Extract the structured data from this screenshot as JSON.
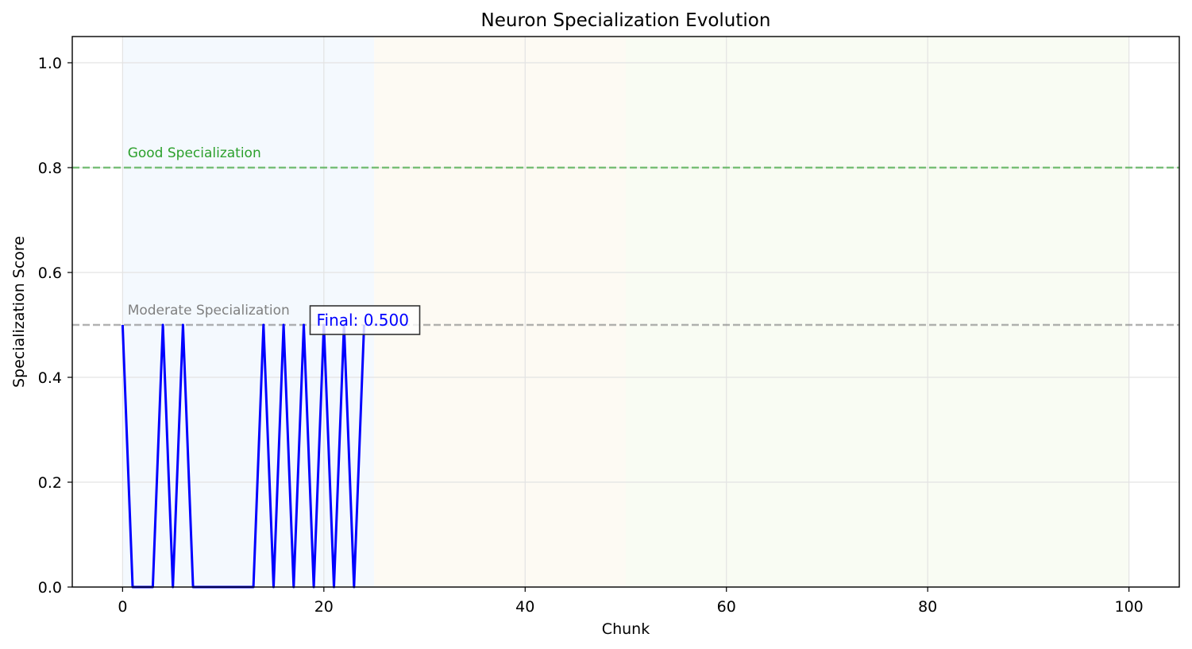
{
  "chart_data": {
    "type": "line",
    "title": "Neuron Specialization Evolution",
    "xlabel": "Chunk",
    "ylabel": "Specialization Score",
    "xlim": [
      -5,
      105
    ],
    "ylim": [
      0,
      1.05
    ],
    "x_ticks": [
      0,
      20,
      40,
      60,
      80,
      100
    ],
    "y_ticks": [
      0.0,
      0.2,
      0.4,
      0.6,
      0.8,
      1.0
    ],
    "grid": true,
    "shaded_regions": [
      {
        "x_start": 0,
        "x_end": 25,
        "color": "#f4f9fe"
      },
      {
        "x_start": 25,
        "x_end": 50,
        "color": "#fdfaf3"
      },
      {
        "x_start": 50,
        "x_end": 100,
        "color": "#f9fcf3"
      }
    ],
    "reference_lines": [
      {
        "y": 0.8,
        "label": "Good Specialization",
        "color": "#2ca02c"
      },
      {
        "y": 0.5,
        "label": "Moderate Specialization",
        "color": "#808080"
      }
    ],
    "series": [
      {
        "color": "#0000ff",
        "x": [
          0,
          1,
          2,
          3,
          4,
          5,
          6,
          7,
          8,
          9,
          10,
          11,
          12,
          13,
          14,
          15,
          16,
          17,
          18,
          19,
          20,
          21,
          22,
          23,
          24
        ],
        "values": [
          0.5,
          0,
          0,
          0,
          0.5,
          0,
          0.5,
          0,
          0,
          0,
          0,
          0,
          0,
          0,
          0.5,
          0,
          0.5,
          0,
          0.5,
          0,
          0.5,
          0,
          0.5,
          0,
          0.5
        ]
      }
    ],
    "annotation": {
      "text": "Final: 0.500",
      "x": 24,
      "y": 0.5,
      "color": "#0000ff"
    }
  }
}
